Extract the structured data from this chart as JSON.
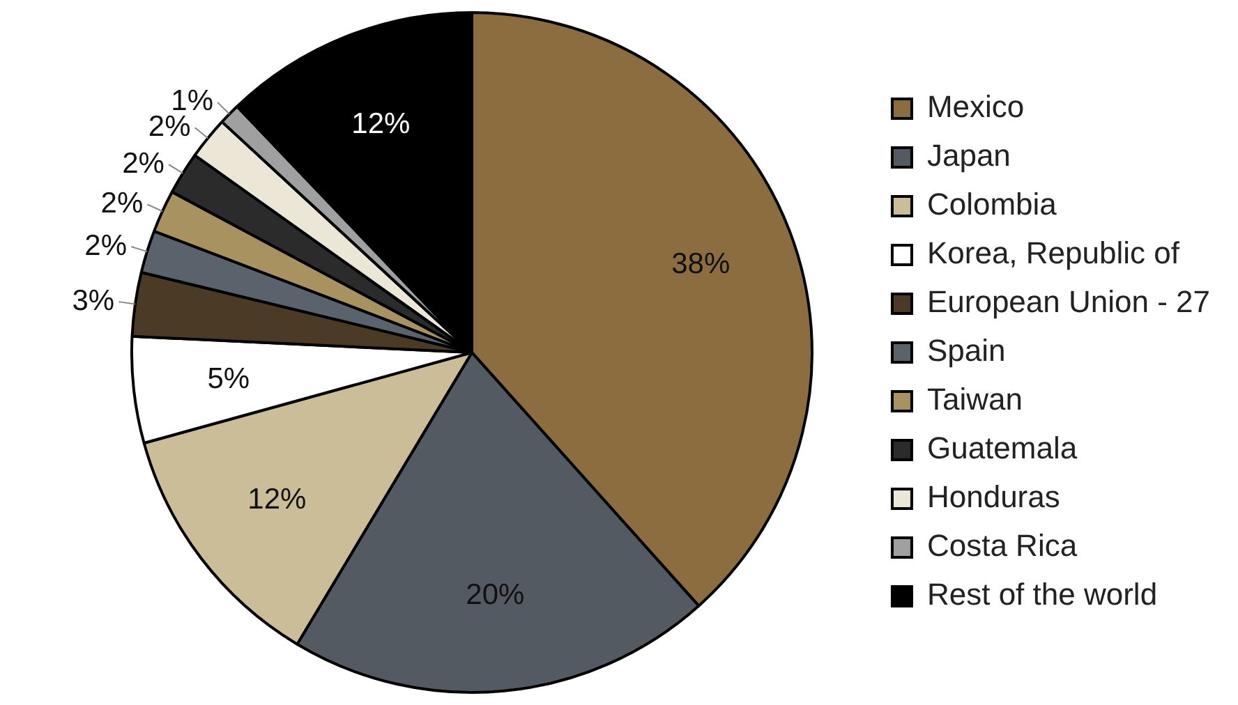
{
  "chart_data": {
    "type": "pie",
    "categories": [
      "Mexico",
      "Japan",
      "Colombia",
      "Korea, Republic of",
      "European Union - 27",
      "Spain",
      "Taiwan",
      "Guatemala",
      "Honduras",
      "Costa Rica",
      "Rest of the world"
    ],
    "values": [
      38,
      20,
      12,
      5,
      3,
      2,
      2,
      2,
      2,
      1,
      12
    ],
    "colors": [
      "#8b6d3f",
      "#545a61",
      "#cbbd97",
      "#ffffff",
      "#4a3a26",
      "#5a636b",
      "#a89260",
      "#2b2b2b",
      "#ece6d6",
      "#a0a0a0",
      "#000000"
    ],
    "value_labels": [
      "38%",
      "20%",
      "12%",
      "5%",
      "3%",
      "2%",
      "2%",
      "2%",
      "2%",
      "1%",
      "12%"
    ],
    "legend": "right"
  }
}
